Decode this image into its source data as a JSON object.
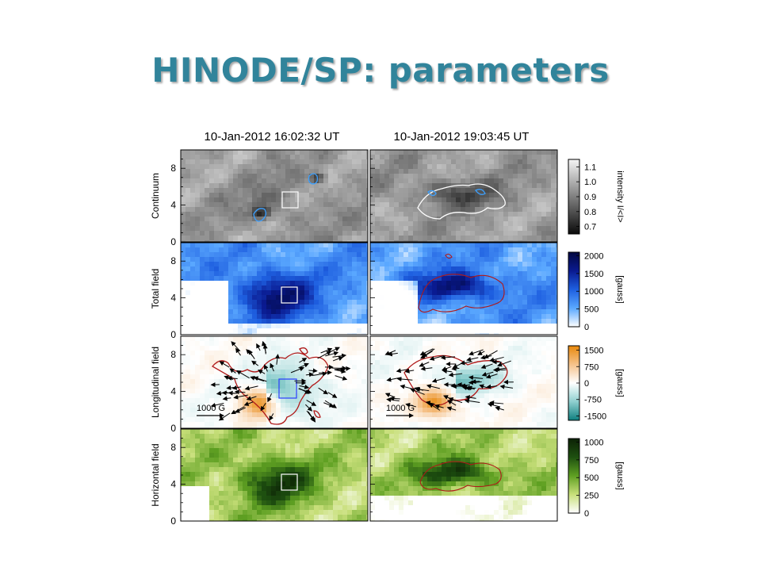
{
  "slide": {
    "title": "HINODE/SP: parameters"
  },
  "figure": {
    "column_titles": [
      "10-Jan-2012 16:02:32 UT",
      "10-Jan-2012 19:03:45 UT"
    ],
    "rows": [
      {
        "key": "continuum",
        "ylabel": "Continuum",
        "colormap": [
          "#0a0a0a",
          "#f5f5f5"
        ],
        "colorbar_label": "intensity I/<I>",
        "colorbar_ticks": [
          "1.1",
          "1.0",
          "0.9",
          "0.8",
          "0.7"
        ],
        "colorbar_range": [
          0.65,
          1.15
        ]
      },
      {
        "key": "total",
        "ylabel": "Total field",
        "colormap": [
          "#ffffff",
          "#5aa8ff",
          "#1e5fe0",
          "#0a1a90",
          "#020840"
        ],
        "colorbar_label": "[gauss]",
        "colorbar_ticks": [
          "2000",
          "1500",
          "1000",
          "500",
          "0"
        ],
        "colorbar_range": [
          0,
          2100
        ]
      },
      {
        "key": "longitudinal",
        "ylabel": "Longitudinal field",
        "colormap": [
          "#0e7f7f",
          "#8fcfcf",
          "#ffffff",
          "#f5c28a",
          "#e8880a"
        ],
        "colorbar_label": "[gauss]",
        "colorbar_ticks": [
          "1500",
          "750",
          "0",
          "-750",
          "-1500"
        ],
        "colorbar_range": [
          -1700,
          1700
        ],
        "arrow_scale_label": "1000 G"
      },
      {
        "key": "horizontal",
        "ylabel": "Horizontal field",
        "colormap": [
          "#ffffff",
          "#c8df7a",
          "#5fa022",
          "#1e5010",
          "#0c2206"
        ],
        "colorbar_label": "[gauss]",
        "colorbar_ticks": [
          "1000",
          "750",
          "500",
          "250",
          "0"
        ],
        "colorbar_range": [
          0,
          1050
        ]
      }
    ],
    "y_ticks": [
      "8",
      "4",
      "0"
    ],
    "y_range": [
      0,
      10
    ]
  }
}
